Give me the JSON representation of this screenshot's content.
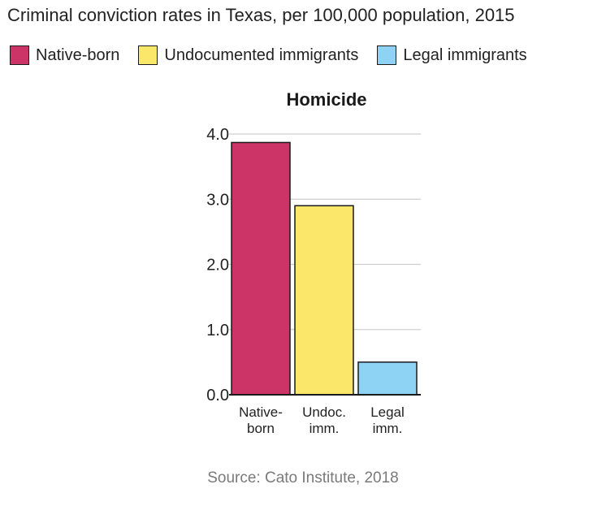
{
  "title": "Criminal conviction rates in Texas, per 100,000 population, 2015",
  "legend": [
    {
      "label": "Native-born",
      "color": "#cc3366"
    },
    {
      "label": "Undocumented immigrants",
      "color": "#fbe86b"
    },
    {
      "label": "Legal immigrants",
      "color": "#8fd3f4"
    }
  ],
  "source": "Source: Cato Institute, 2018",
  "chart_data": {
    "type": "bar",
    "title": "Homicide",
    "categories": [
      [
        "Native-",
        "born"
      ],
      [
        "Undoc.",
        "imm."
      ],
      [
        "Legal",
        "imm."
      ]
    ],
    "values": [
      3.87,
      2.9,
      0.5
    ],
    "colors": [
      "#cc3366",
      "#fbe86b",
      "#8fd3f4"
    ],
    "yticks": [
      "0.0",
      "1.0",
      "2.0",
      "3.0",
      "4.0"
    ],
    "ylim": [
      0,
      4
    ],
    "xlabel": "",
    "ylabel": "",
    "grid": true
  }
}
